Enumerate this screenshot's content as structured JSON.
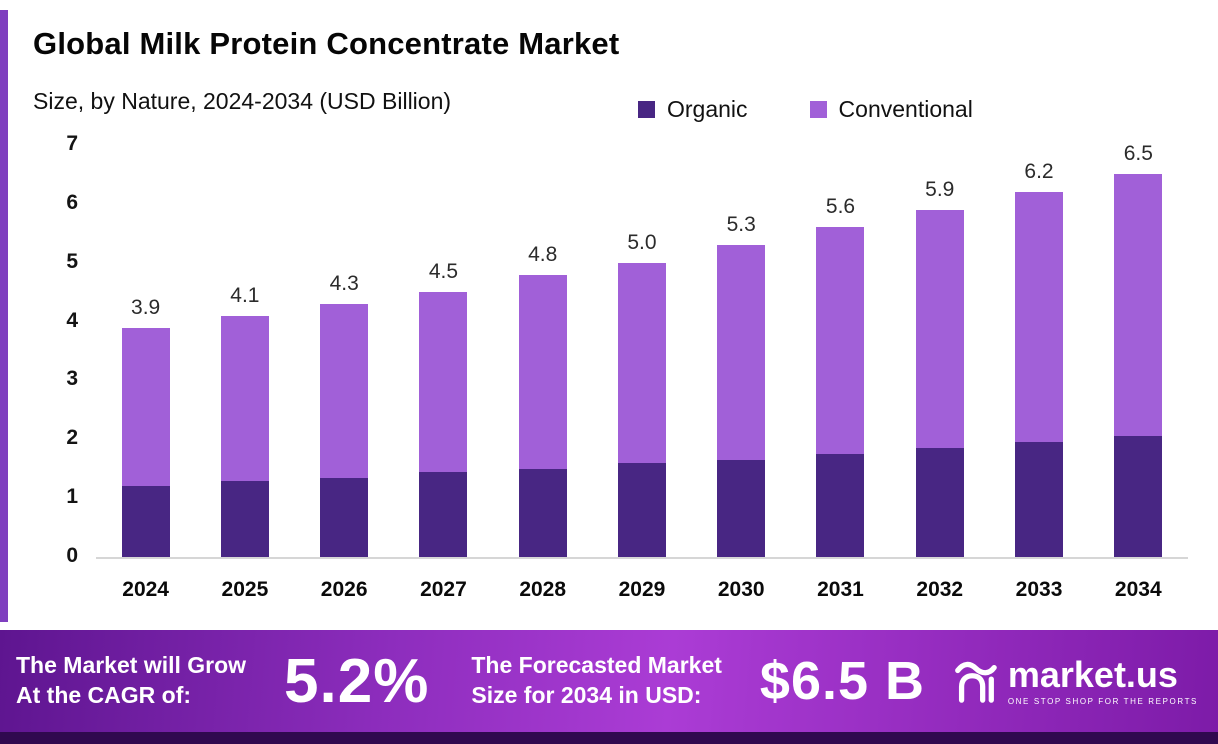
{
  "header": {
    "title": "Global Milk Protein Concentrate Market",
    "subtitle": "Size, by Nature, 2024-2034 (USD Billion)"
  },
  "legend": [
    {
      "label": "Organic",
      "color": "#482683"
    },
    {
      "label": "Conventional",
      "color": "#a160d8"
    }
  ],
  "chart_data": {
    "type": "bar",
    "stacked": true,
    "title": "Global Milk Protein Concentrate Market",
    "subtitle": "Size, by Nature, 2024-2034 (USD Billion)",
    "categories": [
      "2024",
      "2025",
      "2026",
      "2027",
      "2028",
      "2029",
      "2030",
      "2031",
      "2032",
      "2033",
      "2034"
    ],
    "series": [
      {
        "name": "Organic",
        "color": "#482683",
        "values": [
          1.2,
          1.3,
          1.35,
          1.45,
          1.5,
          1.6,
          1.65,
          1.75,
          1.85,
          1.95,
          2.05
        ]
      },
      {
        "name": "Conventional",
        "color": "#a160d8",
        "values": [
          2.7,
          2.8,
          2.95,
          3.05,
          3.3,
          3.4,
          3.65,
          3.85,
          4.05,
          4.25,
          4.45
        ]
      }
    ],
    "totals": [
      3.9,
      4.1,
      4.3,
      4.5,
      4.8,
      5.0,
      5.3,
      5.6,
      5.9,
      6.2,
      6.5
    ],
    "total_labels": [
      "3.9",
      "4.1",
      "4.3",
      "4.5",
      "4.8",
      "5.0",
      "5.3",
      "5.6",
      "5.9",
      "6.2",
      "6.5"
    ],
    "xlabel": "",
    "ylabel": "",
    "ylim": [
      0,
      7
    ],
    "yticks": [
      0,
      1,
      2,
      3,
      4,
      5,
      6,
      7
    ],
    "grid": false,
    "legend_position": "top"
  },
  "footer": {
    "cagr_label_line1": "The Market will Grow",
    "cagr_label_line2": "At the CAGR of:",
    "cagr_value": "5.2%",
    "forecast_label_line1": "The Forecasted Market",
    "forecast_label_line2": "Size for 2034 in USD:",
    "forecast_value": "$6.5 B",
    "brand_name": "market.us",
    "brand_tagline": "ONE STOP SHOP FOR THE REPORTS"
  },
  "colors": {
    "accent_strip": "#7f3fbf",
    "footer_gradient_start": "#5e1590",
    "footer_gradient_mid": "#ab3cd5",
    "footer_gradient_end": "#7d1ba8",
    "bottom_strip": "#30094f",
    "axis_line": "#d6d6d6"
  }
}
